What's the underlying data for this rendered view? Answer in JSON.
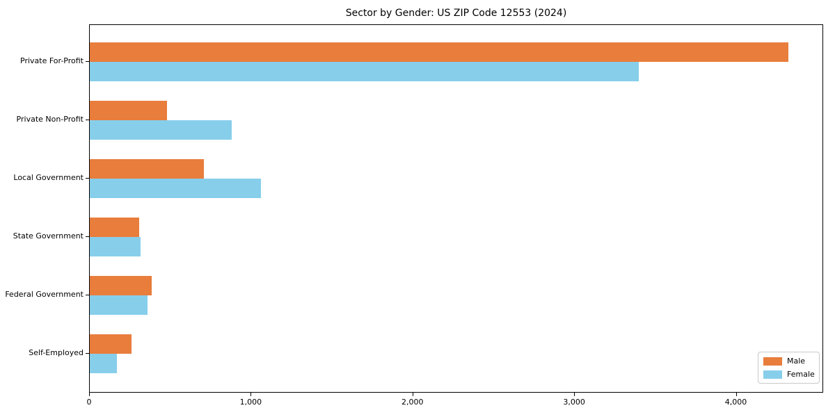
{
  "title": "Sector by Gender: US ZIP Code 12553 (2024)",
  "chart_data": {
    "type": "bar",
    "orientation": "horizontal",
    "title": "Sector by Gender: US ZIP Code 12553 (2024)",
    "categories": [
      "Private For-Profit",
      "Private Non-Profit",
      "Local Government",
      "State Government",
      "Federal Government",
      "Self-Employed"
    ],
    "series": [
      {
        "name": "Male",
        "color": "#e87d3c",
        "values": [
          4330,
          480,
          705,
          305,
          385,
          260
        ]
      },
      {
        "name": "Female",
        "color": "#87ceeb",
        "values": [
          3400,
          880,
          1060,
          315,
          360,
          170
        ]
      }
    ],
    "xlabel": "",
    "ylabel": "",
    "xlim": [
      0,
      4540
    ],
    "xticks": [
      0,
      1000,
      2000,
      3000,
      4000
    ],
    "xtick_labels": [
      "0",
      "1,000",
      "2,000",
      "3,000",
      "4,000"
    ],
    "legend": {
      "entries": [
        "Male",
        "Female"
      ],
      "position": "lower right"
    },
    "grid": false,
    "colors": {
      "spine": "#000000",
      "background": "#ffffff",
      "text": "#000000"
    }
  }
}
